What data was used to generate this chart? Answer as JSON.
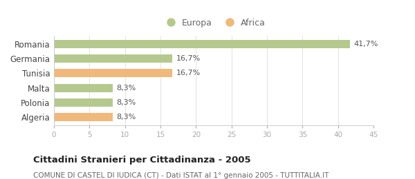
{
  "categories": [
    "Romania",
    "Germania",
    "Tunisia",
    "Malta",
    "Polonia",
    "Algeria"
  ],
  "values": [
    41.7,
    16.7,
    16.7,
    8.3,
    8.3,
    8.3
  ],
  "labels": [
    "41,7%",
    "16,7%",
    "16,7%",
    "8,3%",
    "8,3%",
    "8,3%"
  ],
  "colors": [
    "#b5c98e",
    "#b5c98e",
    "#f0b87a",
    "#b5c98e",
    "#b5c98e",
    "#f0b87a"
  ],
  "legend": [
    {
      "label": "Europa",
      "color": "#b5c98e"
    },
    {
      "label": "Africa",
      "color": "#f0b87a"
    }
  ],
  "xlim": [
    0,
    45
  ],
  "xticks": [
    0,
    5,
    10,
    15,
    20,
    25,
    30,
    35,
    40,
    45
  ],
  "title": "Cittadini Stranieri per Cittadinanza - 2005",
  "subtitle": "COMUNE DI CASTEL DI IUDICA (CT) - Dati ISTAT al 1° gennaio 2005 - TUTTITALIA.IT",
  "bg_color": "#ffffff",
  "bar_height": 0.55,
  "label_fontsize": 8,
  "title_fontsize": 9.5,
  "subtitle_fontsize": 7.5
}
